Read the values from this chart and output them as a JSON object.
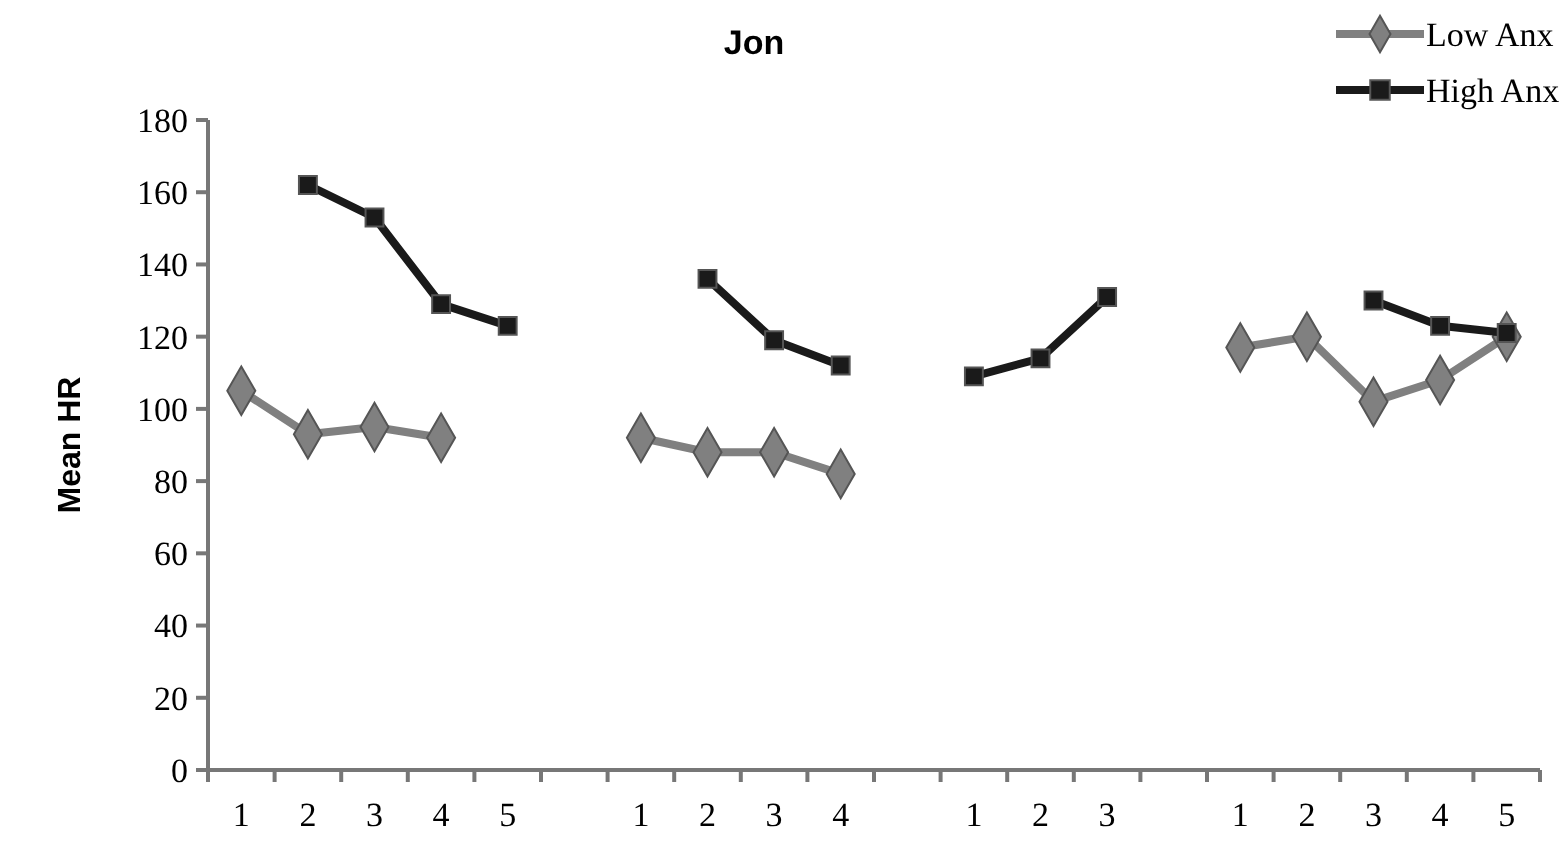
{
  "chart_data": {
    "type": "line",
    "title": "Jon",
    "ylabel": "Mean HR",
    "categories": [
      "1",
      "2",
      "3",
      "4",
      "5",
      null,
      "1",
      "2",
      "3",
      "4",
      null,
      "1",
      "2",
      "3",
      null,
      "1",
      "2",
      "3",
      "4",
      "5"
    ],
    "series": [
      {
        "name": "Low Anx",
        "color": "#808080",
        "marker": "diamond",
        "values": [
          105,
          93,
          95,
          92,
          null,
          null,
          92,
          88,
          88,
          82,
          null,
          null,
          null,
          null,
          null,
          117,
          120,
          102,
          108,
          120
        ]
      },
      {
        "name": "High Anx",
        "color": "#1a1a1a",
        "marker": "square",
        "values": [
          null,
          162,
          153,
          129,
          123,
          null,
          null,
          136,
          119,
          112,
          null,
          109,
          114,
          131,
          null,
          null,
          null,
          130,
          123,
          121
        ]
      }
    ],
    "ylim": [
      0,
      180
    ],
    "yticks": [
      0,
      20,
      40,
      60,
      80,
      100,
      120,
      140,
      160,
      180
    ],
    "grid": false,
    "legend": "top right"
  }
}
